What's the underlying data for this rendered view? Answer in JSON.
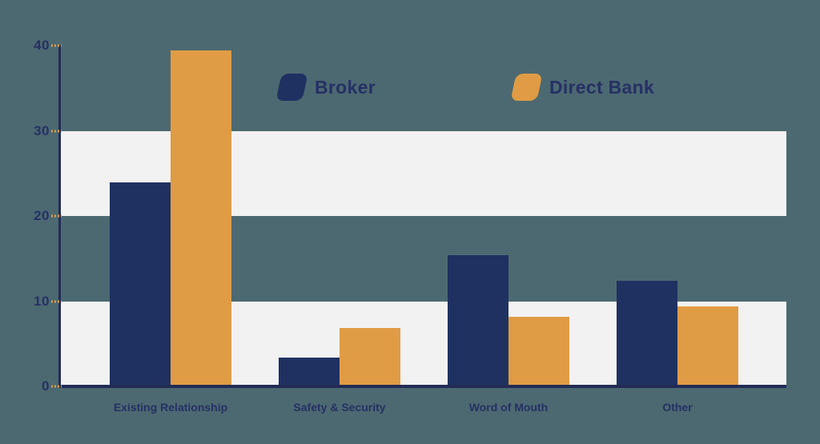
{
  "colors": {
    "background": "#4c6971",
    "band": "#f2f2f3",
    "axis": "#222c56",
    "label_text": "#263064",
    "broker": "#1f3161",
    "direct_bank": "#e09c44",
    "tick_accent": "#e09c44"
  },
  "legend": {
    "items": [
      {
        "label": "Broker",
        "swatch": "broker-swatch",
        "color": "#1f3161"
      },
      {
        "label": "Direct Bank",
        "swatch": "direct-bank-swatch",
        "color": "#e09c44"
      }
    ]
  },
  "chart_data": {
    "type": "bar",
    "title": "",
    "xlabel": "",
    "ylabel": "",
    "categories": [
      "Existing Relationship",
      "Safety & Security",
      "Word of Mouth",
      "Other"
    ],
    "series": [
      {
        "name": "Broker",
        "color": "#1f3161",
        "values": [
          23.9,
          3.4,
          15.4,
          12.4
        ]
      },
      {
        "name": "Direct Bank",
        "color": "#e09c44",
        "values": [
          39.4,
          6.9,
          8.2,
          9.4
        ]
      }
    ],
    "ylim": [
      0,
      40
    ],
    "yticks": [
      0,
      10,
      20,
      30,
      40
    ],
    "grid": "banded-rows",
    "bands": [
      [
        0,
        10
      ],
      [
        20,
        30
      ]
    ],
    "legend_position": "top-center"
  }
}
